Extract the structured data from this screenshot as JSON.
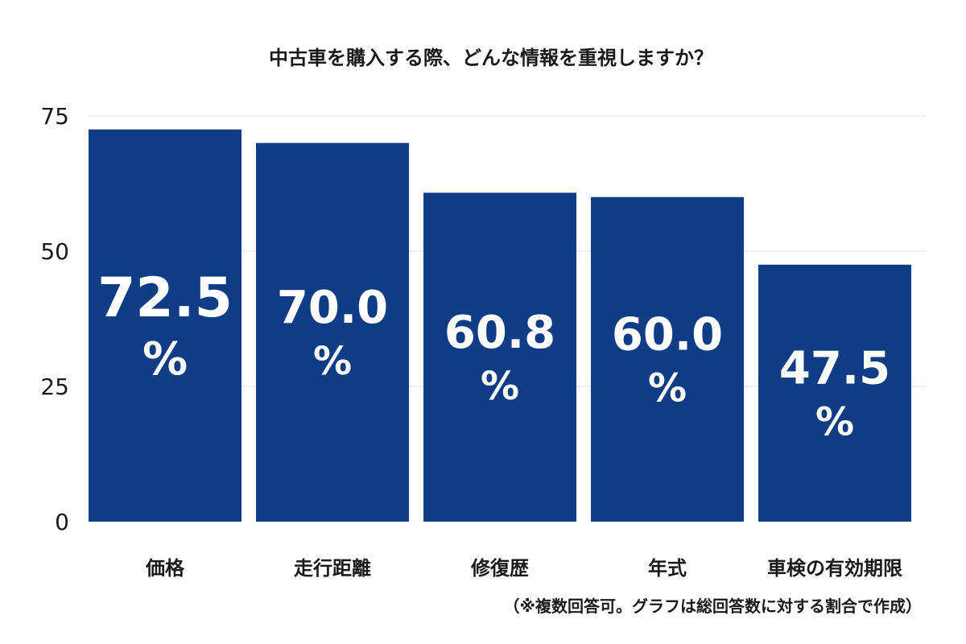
{
  "chart_data": {
    "type": "bar",
    "title": "中古車を購入する際、どんな情報を重視しますか？",
    "categories": [
      "価格",
      "走行距離",
      "修復歴",
      "年式",
      "車検の有効期限"
    ],
    "values": [
      72.5,
      70.0,
      60.8,
      60.0,
      47.5
    ],
    "data_labels": [
      {
        "number": "72.5",
        "unit": "%"
      },
      {
        "number": "70.0",
        "unit": "%"
      },
      {
        "number": "60.8",
        "unit": "%"
      },
      {
        "number": "60.0",
        "unit": "%"
      },
      {
        "number": "47.5",
        "unit": "%"
      }
    ],
    "yticks": [
      "0",
      "25",
      "50",
      "75"
    ],
    "ytick_values": [
      0,
      25,
      50,
      75
    ],
    "ylim": [
      0,
      75
    ],
    "xlabel": "",
    "ylabel": "",
    "grid": true,
    "legend": "none",
    "note": "（※複数回答可。グラフは総回答数に対する割合で作成）",
    "colors": {
      "bar": "#0f3d85",
      "bar_label": "#ffffff",
      "grid": "#dcdcdc",
      "text": "#1a1a1a"
    }
  }
}
